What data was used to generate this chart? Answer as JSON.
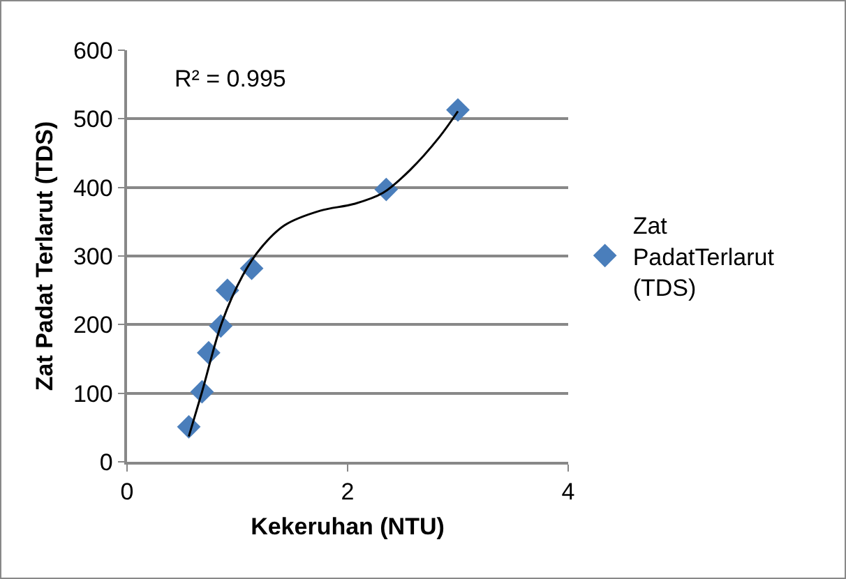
{
  "chart_data": {
    "type": "scatter",
    "xlabel": "Kekeruhan (NTU)",
    "ylabel": "Zat Padat Terlarut (TDS)",
    "annotations": [
      "R² = 0.995"
    ],
    "series": [
      {
        "name": "Zat PadatTerlarut (TDS)",
        "marker": "diamond",
        "color": "#4a7ebb",
        "x": [
          0.56,
          0.68,
          0.74,
          0.85,
          0.91,
          1.13,
          2.35,
          3.0
        ],
        "values": [
          51,
          102,
          159,
          198,
          250,
          282,
          397,
          513
        ]
      },
      {
        "type": "line",
        "marker": "none",
        "color": "#000000",
        "x": [
          0.56,
          0.68,
          0.86,
          1.05,
          1.21,
          1.43,
          1.75,
          2.06,
          2.32,
          2.57,
          2.83,
          3.0
        ],
        "values": [
          37,
          102,
          203,
          272,
          311,
          345,
          366,
          376,
          392,
          426,
          473,
          511
        ]
      }
    ],
    "xlim": [
      0,
      4
    ],
    "xticks": [
      0,
      2,
      4
    ],
    "ylim": [
      0,
      600
    ],
    "yticks": [
      0,
      100,
      200,
      300,
      400,
      500,
      600
    ],
    "grid": "y",
    "legend": "right"
  }
}
